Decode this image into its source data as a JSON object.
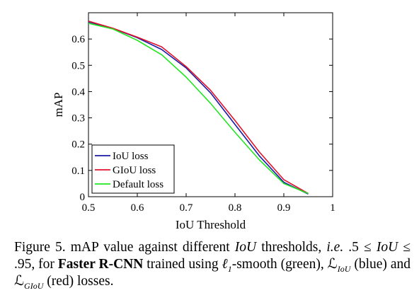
{
  "chart_data": {
    "type": "line",
    "xlabel": "IoU Threshold",
    "ylabel": "mAP",
    "xlim": [
      0.5,
      1.0
    ],
    "ylim": [
      0,
      0.7
    ],
    "xticks": [
      "0.5",
      "0.6",
      "0.7",
      "0.8",
      "0.9",
      "1"
    ],
    "yticks": [
      "0",
      "0.1",
      "0.2",
      "0.3",
      "0.4",
      "0.5",
      "0.6"
    ],
    "grid": false,
    "legend_position": "bottom-left",
    "x": [
      0.5,
      0.55,
      0.6,
      0.65,
      0.7,
      0.75,
      0.8,
      0.85,
      0.9,
      0.95
    ],
    "series": [
      {
        "name": "IoU loss",
        "color": "#1a1aa6",
        "values": [
          0.665,
          0.64,
          0.605,
          0.56,
          0.49,
          0.395,
          0.275,
          0.155,
          0.055,
          0.01
        ]
      },
      {
        "name": "GIoU loss",
        "color": "#e0142c",
        "values": [
          0.668,
          0.641,
          0.607,
          0.57,
          0.495,
          0.405,
          0.29,
          0.17,
          0.065,
          0.012
        ]
      },
      {
        "name": "Default loss",
        "color": "#22e622",
        "values": [
          0.66,
          0.638,
          0.595,
          0.54,
          0.455,
          0.355,
          0.245,
          0.14,
          0.05,
          0.012
        ]
      }
    ]
  },
  "caption": {
    "p1": "Figure 5. mAP value against different ",
    "m1": "IoU",
    "p2": " thresholds, ",
    "m2": "i.e.",
    "p3": " .5 ≤ ",
    "m3": "IoU",
    "p4": " ≤ .95, for ",
    "b1": "Faster R-CNN",
    "p5": " trained using ",
    "m4": "ℓ",
    "s1": "1",
    "p6": "-smooth (green), ",
    "m5": "ℒ",
    "s2": "IoU",
    "p7": " (blue) and ",
    "m6": "ℒ",
    "s3": "GIoU",
    "p8": " (red) losses."
  }
}
